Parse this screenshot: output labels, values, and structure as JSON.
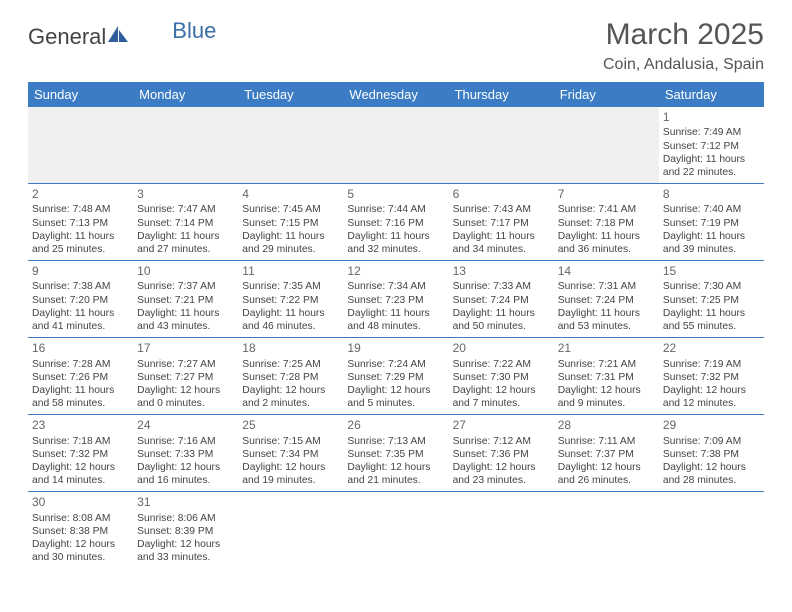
{
  "logo": {
    "part1": "General",
    "part2": "Blue"
  },
  "header": {
    "month_title": "March 2025",
    "location": "Coin, Andalusia, Spain"
  },
  "styling": {
    "header_bg": "#3b7cc4",
    "header_fg": "#ffffff",
    "border_color": "#3b7cc4",
    "empty_bg": "#f0f0f0",
    "text_color": "#444444",
    "title_color": "#555555",
    "logo_blue": "#3b6fa8",
    "font_family": "Arial",
    "daynum_fontsize": 12,
    "cell_fontsize": 10.3,
    "header_fontsize": 13,
    "title_fontsize": 30,
    "location_fontsize": 16
  },
  "weekdays": [
    "Sunday",
    "Monday",
    "Tuesday",
    "Wednesday",
    "Thursday",
    "Friday",
    "Saturday"
  ],
  "weeks": [
    [
      null,
      null,
      null,
      null,
      null,
      null,
      {
        "n": "1",
        "sr": "Sunrise: 7:49 AM",
        "ss": "Sunset: 7:12 PM",
        "dl": "Daylight: 11 hours and 22 minutes."
      }
    ],
    [
      {
        "n": "2",
        "sr": "Sunrise: 7:48 AM",
        "ss": "Sunset: 7:13 PM",
        "dl": "Daylight: 11 hours and 25 minutes."
      },
      {
        "n": "3",
        "sr": "Sunrise: 7:47 AM",
        "ss": "Sunset: 7:14 PM",
        "dl": "Daylight: 11 hours and 27 minutes."
      },
      {
        "n": "4",
        "sr": "Sunrise: 7:45 AM",
        "ss": "Sunset: 7:15 PM",
        "dl": "Daylight: 11 hours and 29 minutes."
      },
      {
        "n": "5",
        "sr": "Sunrise: 7:44 AM",
        "ss": "Sunset: 7:16 PM",
        "dl": "Daylight: 11 hours and 32 minutes."
      },
      {
        "n": "6",
        "sr": "Sunrise: 7:43 AM",
        "ss": "Sunset: 7:17 PM",
        "dl": "Daylight: 11 hours and 34 minutes."
      },
      {
        "n": "7",
        "sr": "Sunrise: 7:41 AM",
        "ss": "Sunset: 7:18 PM",
        "dl": "Daylight: 11 hours and 36 minutes."
      },
      {
        "n": "8",
        "sr": "Sunrise: 7:40 AM",
        "ss": "Sunset: 7:19 PM",
        "dl": "Daylight: 11 hours and 39 minutes."
      }
    ],
    [
      {
        "n": "9",
        "sr": "Sunrise: 7:38 AM",
        "ss": "Sunset: 7:20 PM",
        "dl": "Daylight: 11 hours and 41 minutes."
      },
      {
        "n": "10",
        "sr": "Sunrise: 7:37 AM",
        "ss": "Sunset: 7:21 PM",
        "dl": "Daylight: 11 hours and 43 minutes."
      },
      {
        "n": "11",
        "sr": "Sunrise: 7:35 AM",
        "ss": "Sunset: 7:22 PM",
        "dl": "Daylight: 11 hours and 46 minutes."
      },
      {
        "n": "12",
        "sr": "Sunrise: 7:34 AM",
        "ss": "Sunset: 7:23 PM",
        "dl": "Daylight: 11 hours and 48 minutes."
      },
      {
        "n": "13",
        "sr": "Sunrise: 7:33 AM",
        "ss": "Sunset: 7:24 PM",
        "dl": "Daylight: 11 hours and 50 minutes."
      },
      {
        "n": "14",
        "sr": "Sunrise: 7:31 AM",
        "ss": "Sunset: 7:24 PM",
        "dl": "Daylight: 11 hours and 53 minutes."
      },
      {
        "n": "15",
        "sr": "Sunrise: 7:30 AM",
        "ss": "Sunset: 7:25 PM",
        "dl": "Daylight: 11 hours and 55 minutes."
      }
    ],
    [
      {
        "n": "16",
        "sr": "Sunrise: 7:28 AM",
        "ss": "Sunset: 7:26 PM",
        "dl": "Daylight: 11 hours and 58 minutes."
      },
      {
        "n": "17",
        "sr": "Sunrise: 7:27 AM",
        "ss": "Sunset: 7:27 PM",
        "dl": "Daylight: 12 hours and 0 minutes."
      },
      {
        "n": "18",
        "sr": "Sunrise: 7:25 AM",
        "ss": "Sunset: 7:28 PM",
        "dl": "Daylight: 12 hours and 2 minutes."
      },
      {
        "n": "19",
        "sr": "Sunrise: 7:24 AM",
        "ss": "Sunset: 7:29 PM",
        "dl": "Daylight: 12 hours and 5 minutes."
      },
      {
        "n": "20",
        "sr": "Sunrise: 7:22 AM",
        "ss": "Sunset: 7:30 PM",
        "dl": "Daylight: 12 hours and 7 minutes."
      },
      {
        "n": "21",
        "sr": "Sunrise: 7:21 AM",
        "ss": "Sunset: 7:31 PM",
        "dl": "Daylight: 12 hours and 9 minutes."
      },
      {
        "n": "22",
        "sr": "Sunrise: 7:19 AM",
        "ss": "Sunset: 7:32 PM",
        "dl": "Daylight: 12 hours and 12 minutes."
      }
    ],
    [
      {
        "n": "23",
        "sr": "Sunrise: 7:18 AM",
        "ss": "Sunset: 7:32 PM",
        "dl": "Daylight: 12 hours and 14 minutes."
      },
      {
        "n": "24",
        "sr": "Sunrise: 7:16 AM",
        "ss": "Sunset: 7:33 PM",
        "dl": "Daylight: 12 hours and 16 minutes."
      },
      {
        "n": "25",
        "sr": "Sunrise: 7:15 AM",
        "ss": "Sunset: 7:34 PM",
        "dl": "Daylight: 12 hours and 19 minutes."
      },
      {
        "n": "26",
        "sr": "Sunrise: 7:13 AM",
        "ss": "Sunset: 7:35 PM",
        "dl": "Daylight: 12 hours and 21 minutes."
      },
      {
        "n": "27",
        "sr": "Sunrise: 7:12 AM",
        "ss": "Sunset: 7:36 PM",
        "dl": "Daylight: 12 hours and 23 minutes."
      },
      {
        "n": "28",
        "sr": "Sunrise: 7:11 AM",
        "ss": "Sunset: 7:37 PM",
        "dl": "Daylight: 12 hours and 26 minutes."
      },
      {
        "n": "29",
        "sr": "Sunrise: 7:09 AM",
        "ss": "Sunset: 7:38 PM",
        "dl": "Daylight: 12 hours and 28 minutes."
      }
    ],
    [
      {
        "n": "30",
        "sr": "Sunrise: 8:08 AM",
        "ss": "Sunset: 8:38 PM",
        "dl": "Daylight: 12 hours and 30 minutes."
      },
      {
        "n": "31",
        "sr": "Sunrise: 8:06 AM",
        "ss": "Sunset: 8:39 PM",
        "dl": "Daylight: 12 hours and 33 minutes."
      },
      null,
      null,
      null,
      null,
      null
    ]
  ]
}
